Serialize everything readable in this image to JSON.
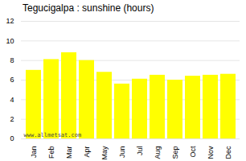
{
  "chart_data": {
    "type": "bar",
    "title": "Tegucigalpa : sunshine (hours)",
    "categories": [
      "Jan",
      "Feb",
      "Mar",
      "Apr",
      "May",
      "Jun",
      "Jul",
      "Aug",
      "Sep",
      "Oct",
      "Nov",
      "Dec"
    ],
    "values": [
      7.0,
      8.1,
      8.8,
      8.0,
      6.8,
      5.6,
      6.1,
      6.5,
      6.0,
      6.4,
      6.5,
      6.6
    ],
    "color": "#FFFF00",
    "ylim": [
      0,
      12
    ],
    "yticks": [
      0,
      2,
      4,
      6,
      8,
      10,
      12
    ],
    "grid": true,
    "annotations": [
      "www.allmetsat.com"
    ]
  }
}
